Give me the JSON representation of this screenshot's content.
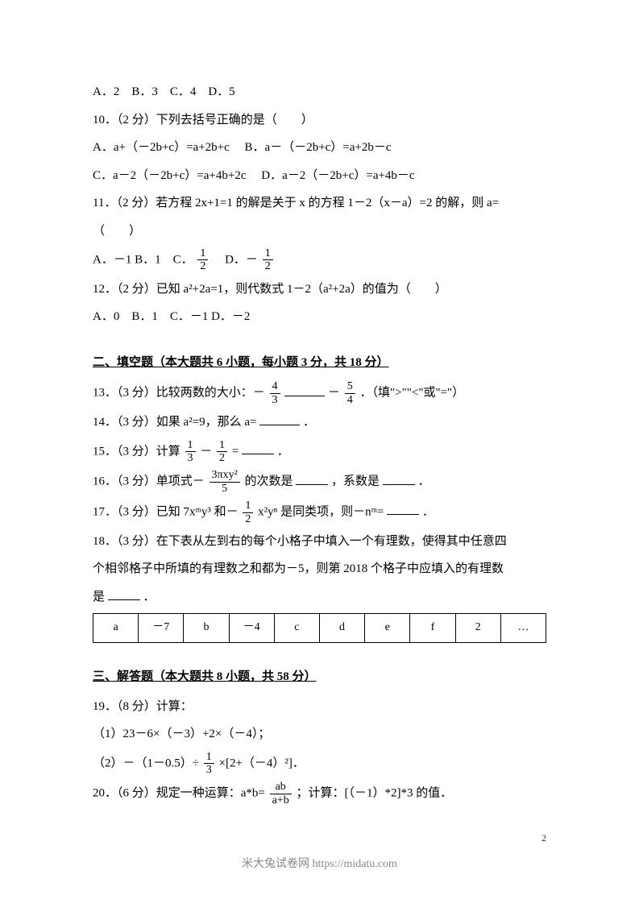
{
  "q9_options": "A．2　B．3　C．4　D．5",
  "q10": {
    "stem": "10．（2 分）下列去括号正确的是（　　）",
    "optA": "A．a+（－2b+c）=a+2b+c",
    "optB": "B．a－（－2b+c）=a+2b－c",
    "optC": "C．a－2（－2b+c）=a+4b+2c",
    "optD": "D．a－2（－2b+c）=a+4b－c"
  },
  "q11": {
    "stem_p1": "11．（2 分）若方程 2x+1=1 的解是关于 x 的方程 1－2（x－a）=2 的解，则 a=",
    "stem_p2": "（　　）",
    "opts_pre": "A．－1 B．1　C．",
    "opts_mid": "　D．－",
    "frac1_num": "1",
    "frac1_den": "2",
    "frac2_num": "1",
    "frac2_den": "2"
  },
  "q12": {
    "stem": "12．（2 分）已知 a²+2a=1，则代数式 1－2（a²+2a）的值为（　　）",
    "opts": "A．0　B．1　C．－1 D．－2"
  },
  "section2": "二、填空题（本大题共 6 小题，每小题 3 分，共 18 分）",
  "q13": {
    "pre": "13．（3 分）比较两数的大小：－",
    "f1_num": "4",
    "f1_den": "3",
    "mid": "－",
    "f2_num": "5",
    "f2_den": "4",
    "post": "．（填\">\"\"<\"或\"=\"）"
  },
  "q14": {
    "pre": "14．（3 分）如果 a²=9，那么 a=",
    "post": "．"
  },
  "q15": {
    "pre": "15．（3 分）计算",
    "f1_num": "1",
    "f1_den": "3",
    "mid": "－",
    "f2_num": "1",
    "f2_den": "2",
    "eq": "=",
    "post": "．"
  },
  "q16": {
    "pre": "16．（3 分）单项式－",
    "f_num": "3πxy²",
    "f_den": "5",
    "mid1": "的次数是",
    "mid2": "，系数是",
    "post": "．"
  },
  "q17": {
    "pre": "17．（3 分）已知 7xᵐy³ 和－",
    "f_num": "1",
    "f_den": "2",
    "mid": "x²yⁿ 是同类项，则－nᵐ=",
    "post": "．"
  },
  "q18": {
    "line1": "18．（3 分）在下表从左到右的每个小格子中填入一个有理数，使得其中任意四",
    "line2": "个相邻格子中所填的有理数之和都为－5，则第 2018 个格子中应填入的有理数",
    "line3_pre": "是",
    "line3_post": "．",
    "cells": [
      "a",
      "－7",
      "b",
      "－4",
      "c",
      "d",
      "e",
      "f",
      "2",
      "…"
    ]
  },
  "section3": "三、解答题（本大题共 8 小题，共 58 分）",
  "q19": {
    "stem": "19．（8 分）计算：",
    "p1": "（1）23－6×（－3）+2×（－4）；",
    "p2_pre": "（2）－（1－0.5）÷",
    "p2_f_num": "1",
    "p2_f_den": "3",
    "p2_post": "×[2+（－4）²]．"
  },
  "q20": {
    "pre": "20．（6 分）规定一种运算：a*b=",
    "f_num": "ab",
    "f_den": "a+b",
    "post": "；计算：[（－1）*2]*3 的值．"
  },
  "page_num": "2",
  "footer": "米大兔试卷网 https://midatu.com"
}
